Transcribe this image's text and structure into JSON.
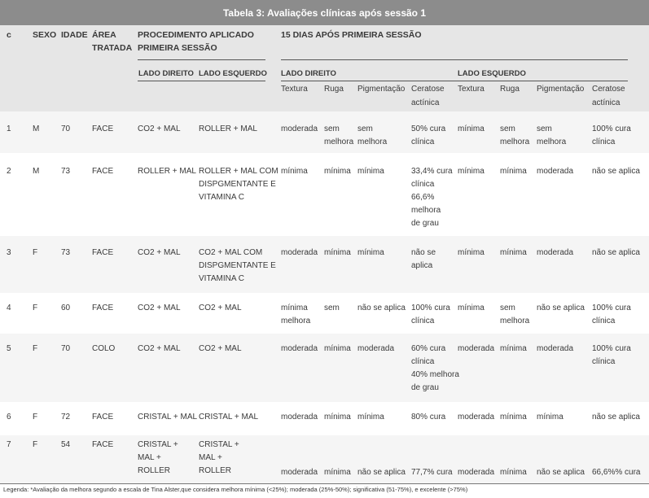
{
  "title": "Tabela 3: Avaliações clínicas após sessão 1",
  "headers": {
    "c": "c",
    "sexo": "SEXO",
    "idade": "IDADE",
    "area1": "ÁREA",
    "area2": "TRATADA",
    "proc1": "PROCEDIMENTO APLICADO",
    "proc2": "PRIMEIRA SESSÃO",
    "dias": "15 DIAS APÓS PRIMEIRA SESSÃO",
    "lado_direito": "LADO DIREITO",
    "lado_esquerdo": "LADO ESQUERDO",
    "lado_direito_b": "LADO DIREITO",
    "lado_esquerdo_b": "LADO ESQUERDO",
    "textura": "Textura",
    "ruga": "Ruga",
    "pigmentacao": "Pigmentação",
    "ceratose1": "Ceratose",
    "ceratose2": "actínica"
  },
  "rows": [
    {
      "c": "1",
      "sexo": "M",
      "idade": "70",
      "area": "FACE",
      "proc_dir": [
        "CO2 + MAL"
      ],
      "proc_esq": [
        "ROLLER + MAL"
      ],
      "d_textura": [
        "moderada"
      ],
      "d_ruga": [
        "sem",
        "melhora"
      ],
      "d_pig": [
        "sem",
        "melhora"
      ],
      "d_cer": [
        "50% cura",
        "clínica"
      ],
      "e_textura": [
        "mínima"
      ],
      "e_ruga": [
        "sem",
        "melhora"
      ],
      "e_pig": [
        "sem",
        "melhora"
      ],
      "e_cer": [
        "100% cura",
        "clínica"
      ]
    },
    {
      "c": "2",
      "sexo": "M",
      "idade": "73",
      "area": "FACE",
      "proc_dir": [
        "ROLLER + MAL"
      ],
      "proc_esq": [
        "ROLLER + MAL COM",
        "DISPGMENTANTE E",
        "VITAMINA C"
      ],
      "d_textura": [
        "mínima"
      ],
      "d_ruga": [
        "mínima"
      ],
      "d_pig": [
        "mínima"
      ],
      "d_cer": [
        "33,4% cura",
        "clínica",
        "66,6%",
        "melhora",
        "de grau"
      ],
      "e_textura": [
        "mínima"
      ],
      "e_ruga": [
        "mínima"
      ],
      "e_pig": [
        "moderada"
      ],
      "e_cer": [
        "não se aplica"
      ]
    },
    {
      "c": "3",
      "sexo": "F",
      "idade": "73",
      "area": "FACE",
      "proc_dir": [
        "CO2 + MAL"
      ],
      "proc_esq": [
        "CO2 + MAL COM",
        "DISPGMENTANTE E",
        "VITAMINA C"
      ],
      "d_textura": [
        "moderada"
      ],
      "d_ruga": [
        "mínima"
      ],
      "d_pig": [
        "mínima"
      ],
      "d_cer": [
        "não se",
        "aplica"
      ],
      "e_textura": [
        "mínima"
      ],
      "e_ruga": [
        "mínima"
      ],
      "e_pig": [
        "moderada"
      ],
      "e_cer": [
        "não se aplica"
      ]
    },
    {
      "c": "4",
      "sexo": "F",
      "idade": "60",
      "area": "FACE",
      "proc_dir": [
        "CO2 + MAL"
      ],
      "proc_esq": [
        "CO2 + MAL"
      ],
      "d_textura": [
        "mínima",
        "melhora"
      ],
      "d_ruga": [
        "sem"
      ],
      "d_pig": [
        "não se aplica"
      ],
      "d_cer": [
        "100% cura",
        "clínica"
      ],
      "e_textura": [
        "mínima"
      ],
      "e_ruga": [
        "sem",
        "melhora"
      ],
      "e_pig": [
        "não se aplica"
      ],
      "e_cer": [
        "100% cura",
        "clínica"
      ]
    },
    {
      "c": "5",
      "sexo": "F",
      "idade": "70",
      "area": "COLO",
      "proc_dir": [
        "CO2 + MAL"
      ],
      "proc_esq": [
        "CO2 + MAL"
      ],
      "d_textura": [
        "moderada"
      ],
      "d_ruga": [
        "mínima"
      ],
      "d_pig": [
        "moderada"
      ],
      "d_cer": [
        "60% cura",
        "clínica",
        "40% melhora",
        "de grau"
      ],
      "e_textura": [
        "moderada"
      ],
      "e_ruga": [
        "mínima"
      ],
      "e_pig": [
        "moderada"
      ],
      "e_cer": [
        "100% cura",
        "clínica"
      ]
    },
    {
      "c": "6",
      "sexo": "F",
      "idade": "72",
      "area": "FACE",
      "proc_dir": [
        "CRISTAL + MAL"
      ],
      "proc_esq": [
        "CRISTAL + MAL"
      ],
      "d_textura": [
        "moderada"
      ],
      "d_ruga": [
        "mínima"
      ],
      "d_pig": [
        "mínima"
      ],
      "d_cer": [
        "80% cura"
      ],
      "e_textura": [
        "moderada"
      ],
      "e_ruga": [
        "mínima"
      ],
      "e_pig": [
        "mínima"
      ],
      "e_cer": [
        "não se aplica"
      ]
    },
    {
      "c": "7",
      "sexo": "F",
      "idade": "54",
      "area": "FACE",
      "proc_dir": [
        "CRISTAL +",
        "MAL +",
        "ROLLER"
      ],
      "proc_esq": [
        "CRISTAL +",
        "MAL +",
        "ROLLER"
      ],
      "d_textura": [
        "moderada"
      ],
      "d_ruga": [
        "mínima"
      ],
      "d_pig": [
        "não se aplica"
      ],
      "d_cer": [
        "77,7% cura"
      ],
      "e_textura": [
        "moderada"
      ],
      "e_ruga": [
        "mínima"
      ],
      "e_pig": [
        "não se aplica"
      ],
      "e_cer": [
        "66,6%% cura"
      ]
    }
  ],
  "legend": "Legenda: *Avaliação da melhora segundo a escala de Tina Alster,que considera melhora mínima (<25%); moderada (25%-50%); significativa (51-75%), e excelente (>75%)"
}
